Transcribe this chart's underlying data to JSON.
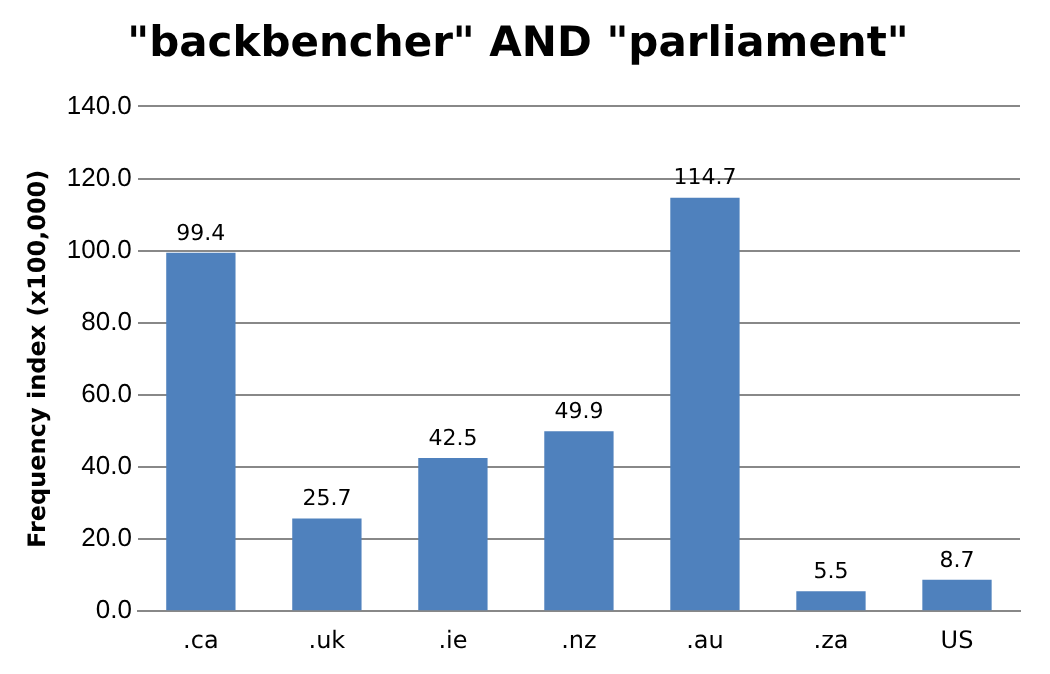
{
  "chart_data": {
    "type": "bar",
    "title": "\"backbencher\" AND \"parliament\"",
    "ylabel": "Frequency index (x100,000)",
    "categories": [
      ".ca",
      ".uk",
      ".ie",
      ".nz",
      ".au",
      ".za",
      "US"
    ],
    "values": [
      99.4,
      25.7,
      42.5,
      49.9,
      114.7,
      5.5,
      8.7
    ],
    "color": "#4f81bd",
    "ylim": [
      0,
      140
    ],
    "yticks": [
      {
        "value": 0,
        "label": "0.0"
      },
      {
        "value": 20,
        "label": "20.0"
      },
      {
        "value": 40,
        "label": "40.0"
      },
      {
        "value": 60,
        "label": "60.0"
      },
      {
        "value": 80,
        "label": "80.0"
      },
      {
        "value": 100,
        "label": "100.0"
      },
      {
        "value": 120,
        "label": "120.0"
      },
      {
        "value": 140,
        "label": "140.0"
      }
    ],
    "grid": "y",
    "data_labels": true,
    "legend": false
  }
}
